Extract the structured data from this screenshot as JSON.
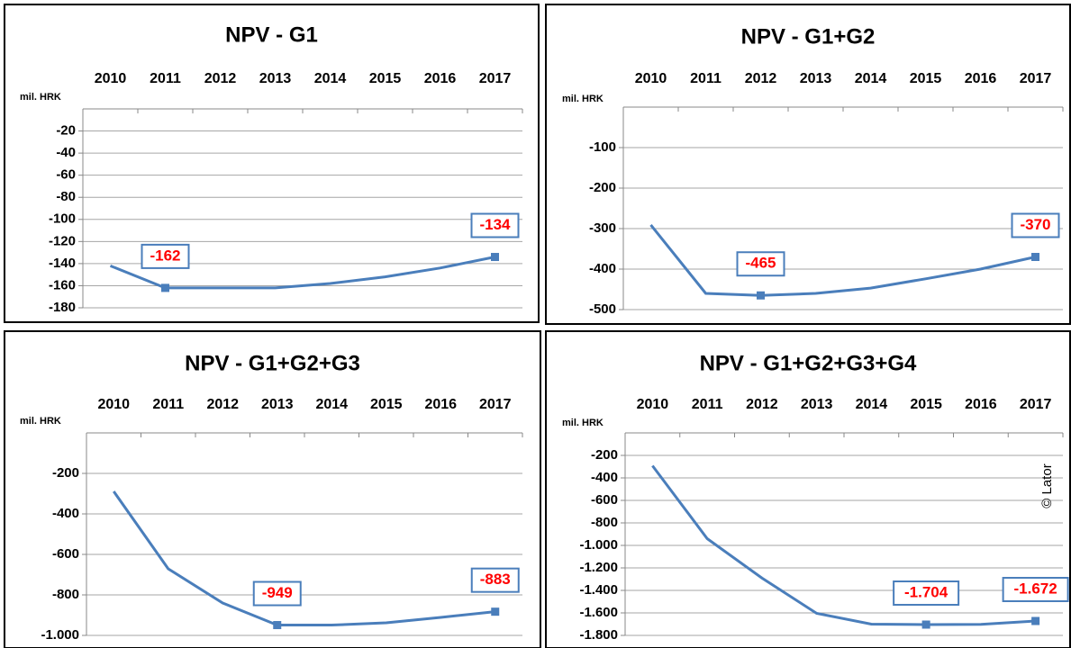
{
  "chart_data": [
    {
      "type": "line",
      "title": "NPV - G1",
      "y_label": "mil. HRK",
      "categories": [
        "2010",
        "2011",
        "2012",
        "2013",
        "2014",
        "2015",
        "2016",
        "2017"
      ],
      "series": [
        {
          "name": "NPV",
          "color": "#4a7ebb",
          "values": [
            -142,
            -162,
            -162,
            -162,
            -158,
            -152,
            -144,
            -134
          ],
          "value_labels": [
            null,
            "-162",
            null,
            null,
            null,
            null,
            null,
            "-134"
          ]
        }
      ],
      "ylim": [
        -180,
        0
      ],
      "yticks": [
        -20,
        -40,
        -60,
        -80,
        -100,
        -120,
        -140,
        -160,
        -180
      ],
      "grid": true
    },
    {
      "type": "line",
      "title": "NPV - G1+G2",
      "y_label": "mil. HRK",
      "categories": [
        "2010",
        "2011",
        "2012",
        "2013",
        "2014",
        "2015",
        "2016",
        "2017"
      ],
      "series": [
        {
          "name": "NPV",
          "color": "#4a7ebb",
          "values": [
            -291,
            -460,
            -465,
            -460,
            -447,
            -424,
            -400,
            -370
          ],
          "value_labels": [
            null,
            null,
            "-465",
            null,
            null,
            null,
            null,
            "-370"
          ]
        }
      ],
      "ylim": [
        -500,
        0
      ],
      "yticks": [
        -100,
        -200,
        -300,
        -400,
        -500
      ],
      "grid": true
    },
    {
      "type": "line",
      "title": "NPV - G1+G2+G3",
      "y_label": "mil. HRK",
      "categories": [
        "2010",
        "2011",
        "2012",
        "2013",
        "2014",
        "2015",
        "2016",
        "2017"
      ],
      "series": [
        {
          "name": "NPV",
          "color": "#4a7ebb",
          "values": [
            -289,
            -671,
            -840,
            -949,
            -949,
            -938,
            -911,
            -883
          ],
          "value_labels": [
            null,
            null,
            null,
            "-949",
            null,
            null,
            null,
            "-883"
          ]
        }
      ],
      "ylim": [
        -1000,
        0
      ],
      "yticks": [
        -200,
        -400,
        -600,
        -800,
        {
          "value": -1000,
          "label": "-1.000"
        }
      ],
      "grid": true
    },
    {
      "type": "line",
      "title": "NPV - G1+G2+G3+G4",
      "y_label": "mil. HRK",
      "annotation": "© Lator",
      "categories": [
        "2010",
        "2011",
        "2012",
        "2013",
        "2014",
        "2015",
        "2016",
        "2017"
      ],
      "series": [
        {
          "name": "NPV",
          "color": "#4a7ebb",
          "values": [
            -292,
            -940,
            -1290,
            -1604,
            -1700,
            -1704,
            -1702,
            -1672
          ],
          "value_labels": [
            null,
            null,
            null,
            null,
            null,
            "-1.704",
            null,
            "-1.672"
          ]
        }
      ],
      "ylim": [
        -1800,
        0
      ],
      "yticks": [
        -200,
        -400,
        -600,
        -800,
        {
          "value": -1000,
          "label": "-1.000"
        },
        {
          "value": -1200,
          "label": "-1.200"
        },
        {
          "value": -1400,
          "label": "-1.400"
        },
        {
          "value": -1600,
          "label": "-1.600"
        },
        {
          "value": -1800,
          "label": "-1.800"
        }
      ],
      "grid": true
    }
  ]
}
